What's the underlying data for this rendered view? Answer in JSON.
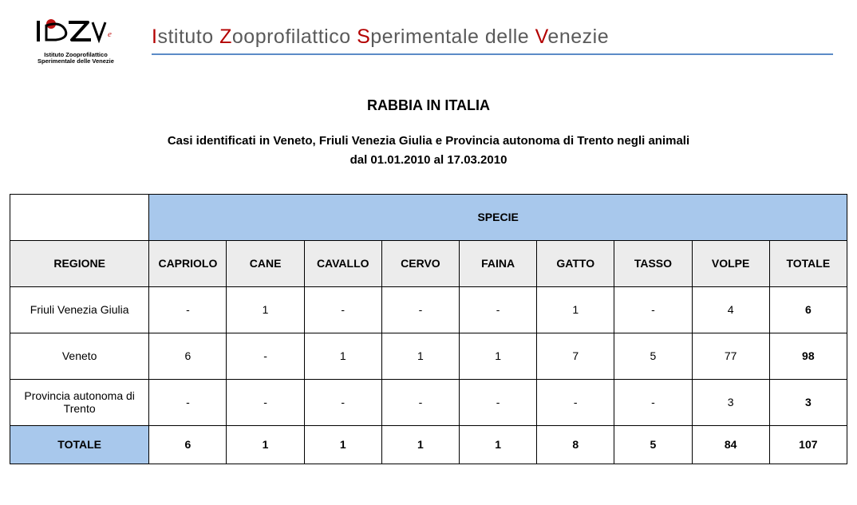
{
  "header": {
    "logo_caption_line1": "Istituto Zooprofilattico",
    "logo_caption_line2": "Sperimentale delle Venezie",
    "org_parts": [
      {
        "cap": "I",
        "rest": "stituto "
      },
      {
        "cap": "Z",
        "rest": "ooprofilattico "
      },
      {
        "cap": "S",
        "rest": "perimentale delle "
      },
      {
        "cap": "V",
        "rest": "enezie"
      }
    ],
    "underline_color": "#5b8bc7"
  },
  "title": "RABBIA IN ITALIA",
  "subtitle_line1": "Casi identificati in Veneto, Friuli Venezia Giulia e Provincia autonoma di Trento negli animali",
  "subtitle_line2": "dal 01.01.2010 al 17.03.2010",
  "table": {
    "header_specie": "SPECIE",
    "header_regione": "REGIONE",
    "species_columns": [
      "CAPRIOLO",
      "CANE",
      "CAVALLO",
      "CERVO",
      "FAINA",
      "GATTO",
      "TASSO",
      "VOLPE",
      "TOTALE"
    ],
    "rows": [
      {
        "region": "Friuli Venezia Giulia",
        "values": [
          "-",
          "1",
          "-",
          "-",
          "-",
          "1",
          "-",
          "4",
          "6"
        ]
      },
      {
        "region": "Veneto",
        "values": [
          "6",
          "-",
          "1",
          "1",
          "1",
          "7",
          "5",
          "77",
          "98"
        ]
      },
      {
        "region": "Provincia autonoma di Trento",
        "values": [
          "-",
          "-",
          "-",
          "-",
          "-",
          "-",
          "-",
          "3",
          "3"
        ]
      }
    ],
    "total_row": {
      "label": "TOTALE",
      "values": [
        "6",
        "1",
        "1",
        "1",
        "1",
        "8",
        "5",
        "84",
        "107"
      ]
    },
    "colors": {
      "header_blue": "#a8c8ec",
      "header_grey": "#ececec",
      "border": "#000000"
    },
    "column_widths": {
      "region": 174,
      "species": 97
    }
  }
}
